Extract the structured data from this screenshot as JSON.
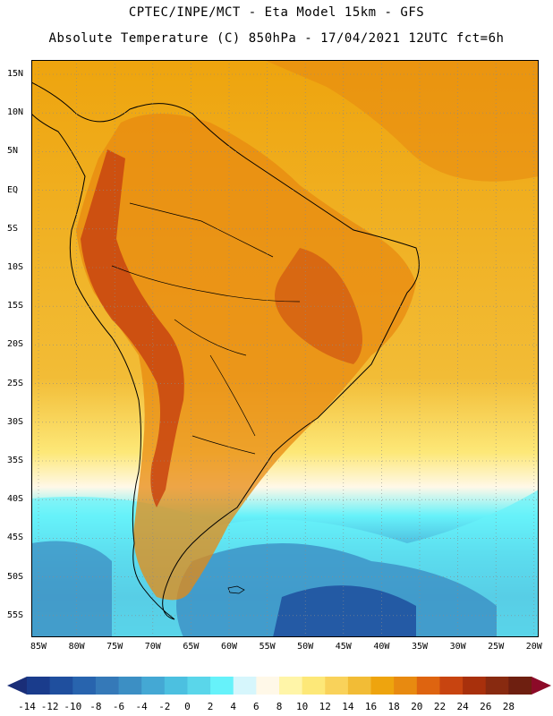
{
  "header": {
    "line1": "CPTEC/INPE/MCT -  Eta Model 15km - GFS",
    "line2": "Absolute Temperature (C) 850hPa - 17/04/2021 12UTC fct=6h"
  },
  "axes": {
    "lat_labels": [
      "15N",
      "10N",
      "5N",
      "EQ",
      "5S",
      "10S",
      "15S",
      "20S",
      "25S",
      "30S",
      "35S",
      "40S",
      "45S",
      "50S",
      "55S"
    ],
    "lon_labels": [
      "85W",
      "80W",
      "75W",
      "70W",
      "65W",
      "60W",
      "55W",
      "50W",
      "45W",
      "40W",
      "35W",
      "30W",
      "25W",
      "20W"
    ]
  },
  "colorbar": {
    "labels": [
      "-14",
      "-12",
      "-10",
      "-8",
      "-6",
      "-4",
      "-2",
      "0",
      "2",
      "4",
      "6",
      "8",
      "10",
      "12",
      "14",
      "16",
      "18",
      "20",
      "22",
      "24",
      "26",
      "28"
    ],
    "colors": [
      "#1a3c8c",
      "#1f4f9e",
      "#2864ae",
      "#3579b8",
      "#3c8fc4",
      "#44a8d4",
      "#4cc0e0",
      "#5ad6ea",
      "#66f2fa",
      "#d6f6fc",
      "#fff8e8",
      "#fff5a8",
      "#fde878",
      "#f9d25a",
      "#f2bc36",
      "#eea40e",
      "#e88a10",
      "#de6410",
      "#c84410",
      "#a8300c",
      "#882a10",
      "#6e1f10"
    ],
    "ends": {
      "low": "#1a2e78",
      "high": "#8c0a28"
    }
  }
}
